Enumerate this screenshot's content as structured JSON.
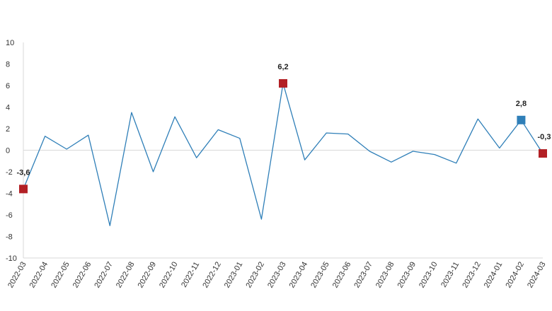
{
  "chart_data": {
    "type": "line",
    "title": "",
    "xlabel": "",
    "ylabel": "",
    "ylim": [
      -10,
      10
    ],
    "yticks": [
      10,
      8,
      6,
      4,
      2,
      0,
      -2,
      -4,
      -6,
      -8,
      -10
    ],
    "grid": false,
    "legend": "none",
    "line_color": "#2f7fb8",
    "categories": [
      "2022-03",
      "2022-04",
      "2022-05",
      "2022-06",
      "2022-07",
      "2022-08",
      "2022-09",
      "2022-10",
      "2022-11",
      "2022-12",
      "2023-01",
      "2023-02",
      "2023-03",
      "2023-04",
      "2023-05",
      "2023-06",
      "2023-07",
      "2023-08",
      "2023-09",
      "2023-10",
      "2023-11",
      "2023-12",
      "2024-01",
      "2024-02",
      "2024-03"
    ],
    "series": [
      {
        "values": [
          -3.6,
          1.3,
          0.1,
          1.4,
          -7.0,
          3.5,
          -2.0,
          3.1,
          -0.7,
          1.9,
          1.1,
          -6.4,
          6.2,
          -0.9,
          1.6,
          1.5,
          -0.1,
          -1.1,
          -0.1,
          -0.4,
          -1.2,
          2.9,
          0.2,
          2.8,
          -0.3
        ]
      }
    ],
    "highlights": [
      {
        "index": 0,
        "label": "-3,6",
        "color": "#b22025"
      },
      {
        "index": 12,
        "label": "6,2",
        "color": "#b22025"
      },
      {
        "index": 23,
        "label": "2,8",
        "color": "#2f7fb8"
      },
      {
        "index": 24,
        "label": "-0,3",
        "color": "#b22025"
      }
    ]
  }
}
